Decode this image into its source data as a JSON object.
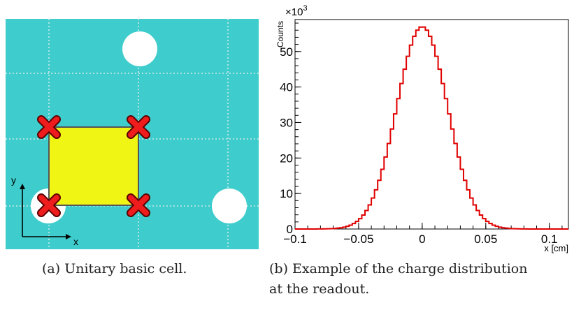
{
  "figure_a": {
    "caption": "(a) Unitary basic cell.",
    "axis_x_label": "x",
    "axis_y_label": "y",
    "colors": {
      "background": "#3ecccc",
      "cell": "#f0f514",
      "marker": "#ee1c1c",
      "hole": "#ffffff",
      "grid": "#cfe9e9"
    },
    "icons": {
      "corner_marker": "x-cross-icon",
      "hole": "circle-hole"
    }
  },
  "figure_b": {
    "caption_line1": "(b) Example of the charge distribution",
    "caption_line2": "at the readout."
  },
  "chart_data": {
    "type": "line",
    "title": "",
    "xlabel": "x [cm]",
    "ylabel": "Counts",
    "y_multiplier_label": "×10",
    "y_multiplier_exp": "3",
    "xlim": [
      -0.1,
      0.115
    ],
    "ylim": [
      0,
      59
    ],
    "x_ticks": [
      -0.1,
      -0.05,
      0,
      0.05,
      0.1
    ],
    "x_tick_labels": [
      "−0.1",
      "−0.05",
      "0",
      "0.05",
      "0.1"
    ],
    "y_ticks": [
      0,
      10,
      20,
      30,
      40,
      50
    ],
    "y_tick_labels": [
      "0",
      "10",
      "20",
      "30",
      "40",
      "50"
    ],
    "series": [
      {
        "color": "#e00000",
        "distribution": "gaussian",
        "mean": 0.0,
        "sigma": 0.02,
        "peak": 57,
        "bin_width": 0.0025
      }
    ],
    "grid": false,
    "legend": "none"
  }
}
